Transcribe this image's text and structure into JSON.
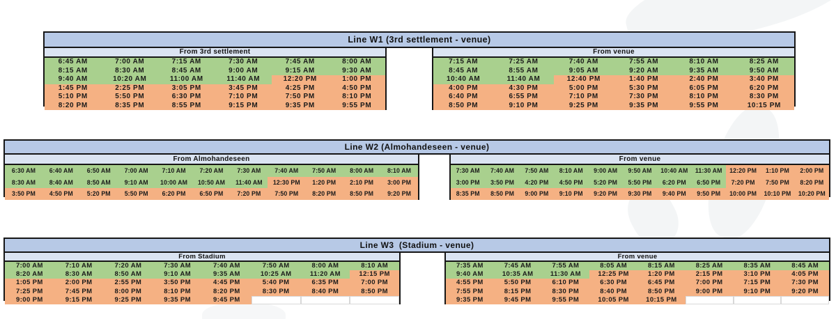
{
  "colors": {
    "title_bar": "#b7c9e6",
    "subheader_bar": "#dbe4f2",
    "am_green": "#a9d08e",
    "pm_orange": "#f5b183",
    "border_black": "#161616"
  },
  "tables": [
    {
      "id": "w1",
      "title": "Line W1 (3rd settlement - venue)",
      "left": {
        "header": "From 3rd settlement",
        "columns": 6,
        "rows": [
          [
            "6:45 AM",
            "7:00 AM",
            "7:15 AM",
            "7:30 AM",
            "7:45 AM",
            "8:00 AM"
          ],
          [
            "8:15 AM",
            "8:30 AM",
            "8:45 AM",
            "9:00 AM",
            "9:15 AM",
            "9:30 AM"
          ],
          [
            "9:40 AM",
            "10:20 AM",
            "11:00 AM",
            "11:40 AM",
            "12:20 PM",
            "1:00 PM"
          ],
          [
            "1:45 PM",
            "2:25 PM",
            "3:05 PM",
            "3:45 PM",
            "4:25 PM",
            "4:50 PM"
          ],
          [
            "5:10 PM",
            "5:50 PM",
            "6:30 PM",
            "7:10 PM",
            "7:50 PM",
            "8:10 PM"
          ],
          [
            "8:20 PM",
            "8:35 PM",
            "8:55 PM",
            "9:15 PM",
            "9:35 PM",
            "9:55 PM"
          ]
        ],
        "shading": [
          "gggggg",
          "gggggg",
          "ggggoo",
          "oooooo",
          "oooooo",
          "oooooo"
        ]
      },
      "right": {
        "header": "From venue",
        "columns": 6,
        "rows": [
          [
            "7:15 AM",
            "7:25 AM",
            "7:40 AM",
            "7:55 AM",
            "8:10 AM",
            "8:25 AM"
          ],
          [
            "8:45 AM",
            "8:55 AM",
            "9:05 AM",
            "9:20 AM",
            "9:35 AM",
            "9:50 AM"
          ],
          [
            "10:40 AM",
            "11:40 AM",
            "12:40 PM",
            "1:40 PM",
            "2:40 PM",
            "3:40 PM"
          ],
          [
            "4:00 PM",
            "4:30 PM",
            "5:00 PM",
            "5:30 PM",
            "6:05 PM",
            "6:20 PM"
          ],
          [
            "6:40 PM",
            "6:55 PM",
            "7:10 PM",
            "7:30 PM",
            "8:10 PM",
            "8:30 PM"
          ],
          [
            "8:50 PM",
            "9:10 PM",
            "9:25 PM",
            "9:35 PM",
            "9:55 PM",
            "10:15 PM"
          ]
        ],
        "shading": [
          "gggggg",
          "gggggg",
          "ggoooo",
          "oooooo",
          "oooooo",
          "oooooo"
        ]
      }
    },
    {
      "id": "w2",
      "title": "Line W2 (Almohandeseen - venue)",
      "left": {
        "header": "From Almohandeseen",
        "columns": 11,
        "rows": [
          [
            "6:30 AM",
            "6:40 AM",
            "6:50 AM",
            "7:00 AM",
            "7:10 AM",
            "7:20 AM",
            "7:30 AM",
            "7:40 AM",
            "7:50 AM",
            "8:00 AM",
            "8:10 AM"
          ],
          [
            "8:30 AM",
            "8:40 AM",
            "8:50 AM",
            "9:10 AM",
            "10:00 AM",
            "10:50 AM",
            "11:40 AM",
            "12:30 PM",
            "1:20 PM",
            "2:10 PM",
            "3:00 PM"
          ],
          [
            "3:50 PM",
            "4:50 PM",
            "5:20 PM",
            "5:50 PM",
            "6:20 PM",
            "6:50 PM",
            "7:20 PM",
            "7:50 PM",
            "8:20 PM",
            "8:50 PM",
            "9:20 PM"
          ]
        ],
        "shading": [
          "ggggggggggg",
          "gggggggoooo",
          "ooooooooooo"
        ]
      },
      "right": {
        "header": "From venue",
        "columns": 11,
        "rows": [
          [
            "7:30 AM",
            "7:40 AM",
            "7:50 AM",
            "8:10 AM",
            "9:00 AM",
            "9:50 AM",
            "10:40 AM",
            "11:30 AM",
            "12:20 PM",
            "1:10 PM",
            "2:00 PM"
          ],
          [
            "3:00 PM",
            "3:50 PM",
            "4:20 PM",
            "4:50 PM",
            "5:20 PM",
            "5:50 PM",
            "6:20 PM",
            "6:50 PM",
            "7:20 PM",
            "7:50 PM",
            "8:20 PM"
          ],
          [
            "8:35 PM",
            "8:50 PM",
            "9:00 PM",
            "9:10 PM",
            "9:20 PM",
            "9:30 PM",
            "9:40 PM",
            "9:50 PM",
            "10:00 PM",
            "10:10 PM",
            "10:20 PM"
          ]
        ],
        "shading": [
          "ggggggggooo",
          "ggggggggooo",
          "ooooooooooo"
        ]
      }
    },
    {
      "id": "w3",
      "title": "Line W3  (Stadium - venue)",
      "left": {
        "header": "From Stadium",
        "columns": 8,
        "rows": [
          [
            "7:00 AM",
            "7:10 AM",
            "7:20 AM",
            "7:30 AM",
            "7:40 AM",
            "7:50 AM",
            "8:00 AM",
            "8:10 AM"
          ],
          [
            "8:20 AM",
            "8:30 AM",
            "8:50 AM",
            "9:10 AM",
            "9:35 AM",
            "10:25 AM",
            "11:20 AM",
            "12:15 PM"
          ],
          [
            "1:05 PM",
            "2:00 PM",
            "2:55 PM",
            "3:50 PM",
            "4:45 PM",
            "5:40 PM",
            "6:35 PM",
            "7:00 PM"
          ],
          [
            "7:25 PM",
            "7:45 PM",
            "8:00 PM",
            "8:10 PM",
            "8:20 PM",
            "8:30 PM",
            "8:40 PM",
            "8:50 PM"
          ],
          [
            "9:00 PM",
            "9:15 PM",
            "9:25 PM",
            "9:35 PM",
            "9:45 PM",
            "",
            "",
            ""
          ]
        ],
        "shading": [
          "gggggggg",
          "gggggggo",
          "oooooooo",
          "oooooooo",
          "ooooowww"
        ]
      },
      "right": {
        "header": "From venue",
        "columns": 8,
        "rows": [
          [
            "7:35 AM",
            "7:45 AM",
            "7:55 AM",
            "8:05 AM",
            "8:15 AM",
            "8:25 AM",
            "8:35 AM",
            "8:45 AM"
          ],
          [
            "9:40 AM",
            "10:35 AM",
            "11:30 AM",
            "12:25 PM",
            "1:20 PM",
            "2:15 PM",
            "3:10 PM",
            "4:05 PM"
          ],
          [
            "4:55 PM",
            "5:50 PM",
            "6:10 PM",
            "6:30 PM",
            "6:45 PM",
            "7:00 PM",
            "7:15 PM",
            "7:30 PM"
          ],
          [
            "7:55 PM",
            "8:15 PM",
            "8:30 PM",
            "8:40 PM",
            "8:50 PM",
            "9:00 PM",
            "9:10 PM",
            "9:20 PM"
          ],
          [
            "9:35 PM",
            "9:45 PM",
            "9:55 PM",
            "10:05 PM",
            "10:15 PM",
            "",
            "",
            ""
          ]
        ],
        "shading": [
          "gggggggg",
          "gggooooo",
          "oooooooo",
          "oooooooo",
          "ooooowww"
        ]
      }
    }
  ]
}
